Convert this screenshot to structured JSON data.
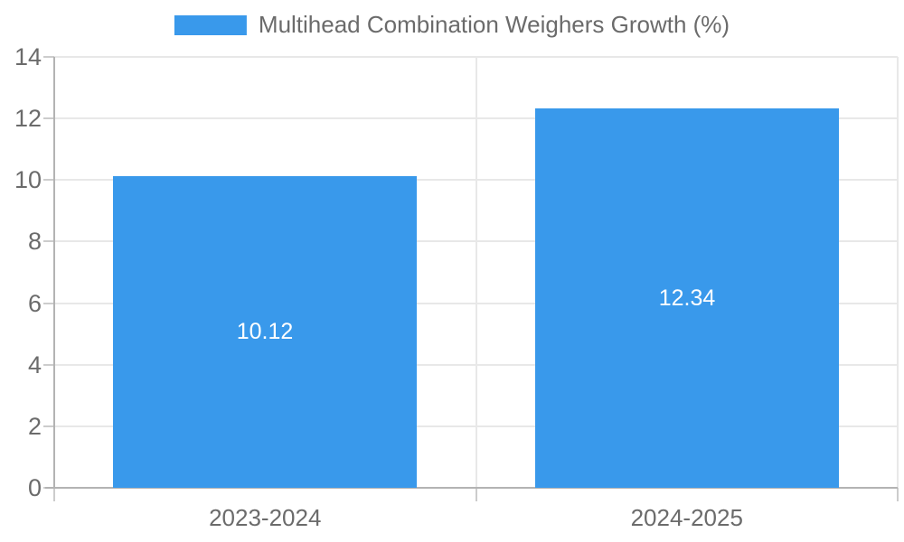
{
  "legend": {
    "position": "top-center",
    "entries": [
      {
        "label": "Multihead Combination Weighers Growth (%)",
        "color": "#3999eb"
      }
    ]
  },
  "chart_data": {
    "type": "bar",
    "title": "",
    "xlabel": "",
    "ylabel": "",
    "categories": [
      "2023-2024",
      "2024-2025"
    ],
    "series": [
      {
        "name": "Multihead Combination Weighers Growth (%)",
        "values": [
          10.12,
          12.34
        ],
        "color": "#3999eb"
      }
    ],
    "value_labels": [
      "10.12",
      "12.34"
    ],
    "ylim": [
      0,
      14
    ],
    "yticks": [
      0,
      2,
      4,
      6,
      8,
      10,
      12,
      14
    ],
    "grid": true,
    "legend_position": "top-center",
    "data_label_position": "inside-center"
  },
  "colors": {
    "bar": "#3999eb",
    "axis_line": "#b3b3b3",
    "grid_line": "#e8e8e8",
    "tick_line": "#cccccc",
    "text": "#6b6b6b",
    "data_label": "#ffffff",
    "background": "#ffffff"
  }
}
